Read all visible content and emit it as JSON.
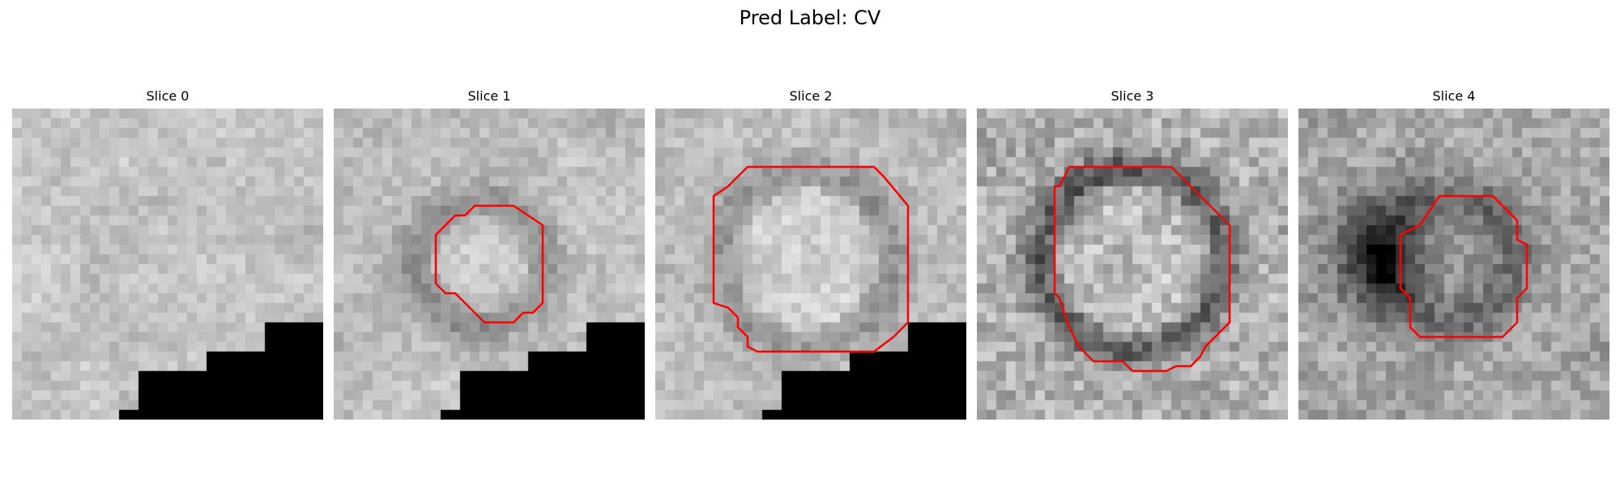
{
  "figure": {
    "title": "Pred Label: CV"
  },
  "panels": [
    {
      "title": "Slice 0",
      "contour": false
    },
    {
      "title": "Slice 1",
      "contour": true
    },
    {
      "title": "Slice 2",
      "contour": true
    },
    {
      "title": "Slice 3",
      "contour": true
    },
    {
      "title": "Slice 4",
      "contour": true
    }
  ],
  "colors": {
    "contour": "#ff0000",
    "mask": "#000000",
    "background": "#ffffff"
  }
}
